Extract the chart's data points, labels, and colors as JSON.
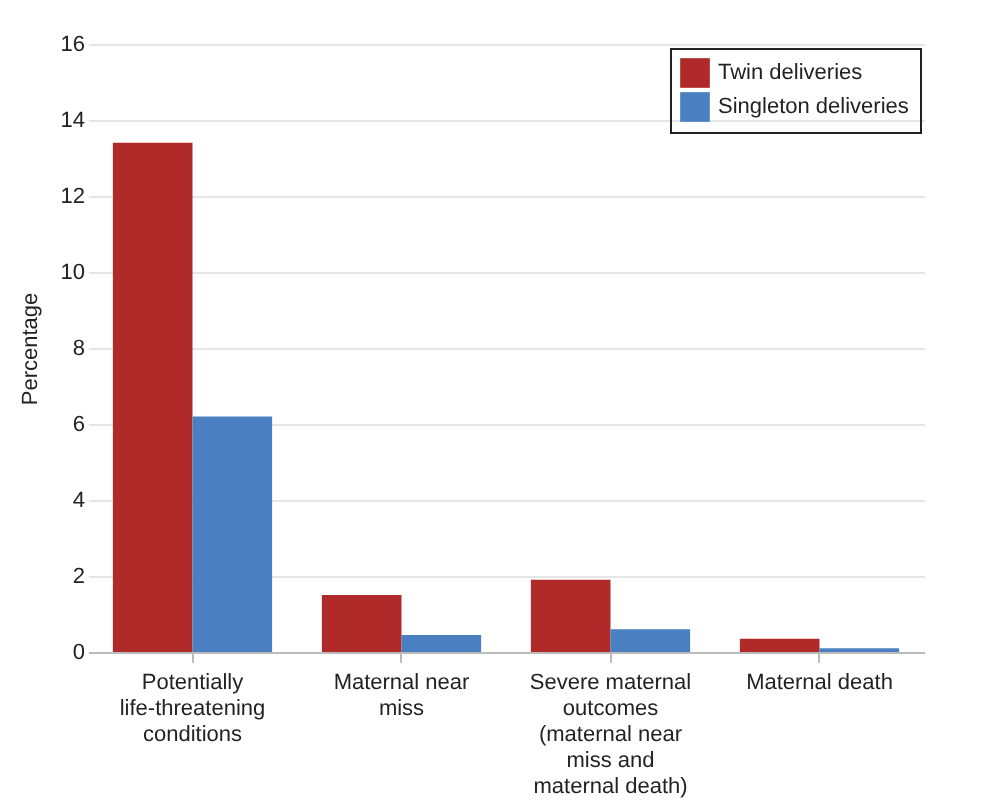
{
  "chart_data": {
    "type": "bar",
    "ylabel": "Percentage",
    "categories": [
      "Potentially life-threatening conditions",
      "Maternal near miss",
      "Severe maternal outcomes (maternal near miss and maternal death)",
      "Maternal death"
    ],
    "series": [
      {
        "name": "Twin deliveries",
        "color": "#b02a2a",
        "values": [
          13.4,
          1.5,
          1.9,
          0.35
        ]
      },
      {
        "name": "Singleton deliveries",
        "color": "#4a80c2",
        "values": [
          6.2,
          0.45,
          0.6,
          0.1
        ]
      }
    ],
    "ylim": [
      0,
      16
    ],
    "yticks": [
      0,
      2,
      4,
      6,
      8,
      10,
      12,
      14,
      16
    ],
    "grid": "y",
    "legend": "top right"
  }
}
